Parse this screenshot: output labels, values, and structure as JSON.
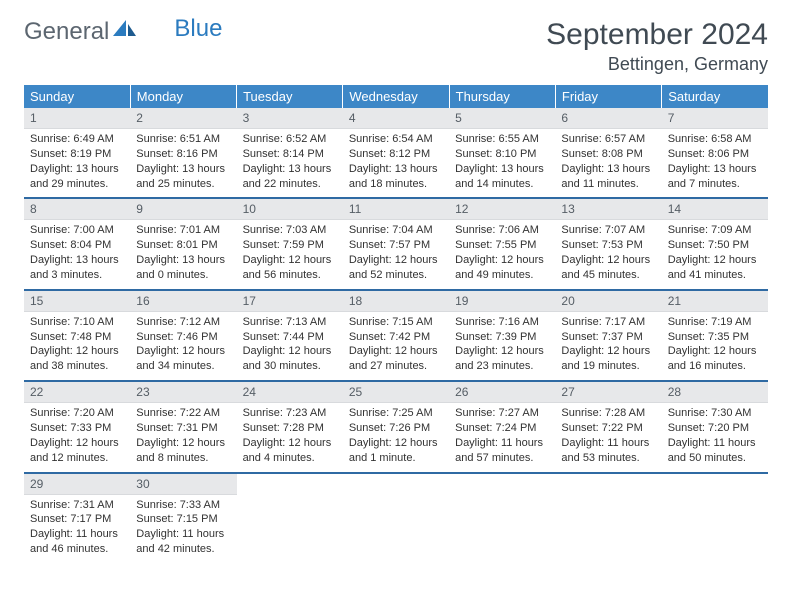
{
  "brand": {
    "general": "General",
    "blue": "Blue"
  },
  "title": "September 2024",
  "location": "Bettingen, Germany",
  "day_headers": [
    "Sunday",
    "Monday",
    "Tuesday",
    "Wednesday",
    "Thursday",
    "Friday",
    "Saturday"
  ],
  "colors": {
    "header_bg": "#3d87c7",
    "header_text": "#ffffff",
    "daynum_bg": "#e7e8ea",
    "daynum_text": "#555d65",
    "week_border": "#2f6aa3",
    "logo_gray": "#5c6670",
    "logo_blue": "#2b7bbf"
  },
  "weeks": [
    [
      {
        "n": "1",
        "sr": "6:49 AM",
        "ss": "8:19 PM",
        "dl": "13 hours and 29 minutes."
      },
      {
        "n": "2",
        "sr": "6:51 AM",
        "ss": "8:16 PM",
        "dl": "13 hours and 25 minutes."
      },
      {
        "n": "3",
        "sr": "6:52 AM",
        "ss": "8:14 PM",
        "dl": "13 hours and 22 minutes."
      },
      {
        "n": "4",
        "sr": "6:54 AM",
        "ss": "8:12 PM",
        "dl": "13 hours and 18 minutes."
      },
      {
        "n": "5",
        "sr": "6:55 AM",
        "ss": "8:10 PM",
        "dl": "13 hours and 14 minutes."
      },
      {
        "n": "6",
        "sr": "6:57 AM",
        "ss": "8:08 PM",
        "dl": "13 hours and 11 minutes."
      },
      {
        "n": "7",
        "sr": "6:58 AM",
        "ss": "8:06 PM",
        "dl": "13 hours and 7 minutes."
      }
    ],
    [
      {
        "n": "8",
        "sr": "7:00 AM",
        "ss": "8:04 PM",
        "dl": "13 hours and 3 minutes."
      },
      {
        "n": "9",
        "sr": "7:01 AM",
        "ss": "8:01 PM",
        "dl": "13 hours and 0 minutes."
      },
      {
        "n": "10",
        "sr": "7:03 AM",
        "ss": "7:59 PM",
        "dl": "12 hours and 56 minutes."
      },
      {
        "n": "11",
        "sr": "7:04 AM",
        "ss": "7:57 PM",
        "dl": "12 hours and 52 minutes."
      },
      {
        "n": "12",
        "sr": "7:06 AM",
        "ss": "7:55 PM",
        "dl": "12 hours and 49 minutes."
      },
      {
        "n": "13",
        "sr": "7:07 AM",
        "ss": "7:53 PM",
        "dl": "12 hours and 45 minutes."
      },
      {
        "n": "14",
        "sr": "7:09 AM",
        "ss": "7:50 PM",
        "dl": "12 hours and 41 minutes."
      }
    ],
    [
      {
        "n": "15",
        "sr": "7:10 AM",
        "ss": "7:48 PM",
        "dl": "12 hours and 38 minutes."
      },
      {
        "n": "16",
        "sr": "7:12 AM",
        "ss": "7:46 PM",
        "dl": "12 hours and 34 minutes."
      },
      {
        "n": "17",
        "sr": "7:13 AM",
        "ss": "7:44 PM",
        "dl": "12 hours and 30 minutes."
      },
      {
        "n": "18",
        "sr": "7:15 AM",
        "ss": "7:42 PM",
        "dl": "12 hours and 27 minutes."
      },
      {
        "n": "19",
        "sr": "7:16 AM",
        "ss": "7:39 PM",
        "dl": "12 hours and 23 minutes."
      },
      {
        "n": "20",
        "sr": "7:17 AM",
        "ss": "7:37 PM",
        "dl": "12 hours and 19 minutes."
      },
      {
        "n": "21",
        "sr": "7:19 AM",
        "ss": "7:35 PM",
        "dl": "12 hours and 16 minutes."
      }
    ],
    [
      {
        "n": "22",
        "sr": "7:20 AM",
        "ss": "7:33 PM",
        "dl": "12 hours and 12 minutes."
      },
      {
        "n": "23",
        "sr": "7:22 AM",
        "ss": "7:31 PM",
        "dl": "12 hours and 8 minutes."
      },
      {
        "n": "24",
        "sr": "7:23 AM",
        "ss": "7:28 PM",
        "dl": "12 hours and 4 minutes."
      },
      {
        "n": "25",
        "sr": "7:25 AM",
        "ss": "7:26 PM",
        "dl": "12 hours and 1 minute."
      },
      {
        "n": "26",
        "sr": "7:27 AM",
        "ss": "7:24 PM",
        "dl": "11 hours and 57 minutes."
      },
      {
        "n": "27",
        "sr": "7:28 AM",
        "ss": "7:22 PM",
        "dl": "11 hours and 53 minutes."
      },
      {
        "n": "28",
        "sr": "7:30 AM",
        "ss": "7:20 PM",
        "dl": "11 hours and 50 minutes."
      }
    ],
    [
      {
        "n": "29",
        "sr": "7:31 AM",
        "ss": "7:17 PM",
        "dl": "11 hours and 46 minutes."
      },
      {
        "n": "30",
        "sr": "7:33 AM",
        "ss": "7:15 PM",
        "dl": "11 hours and 42 minutes."
      },
      null,
      null,
      null,
      null,
      null
    ]
  ],
  "labels": {
    "sunrise": "Sunrise: ",
    "sunset": "Sunset: ",
    "daylight": "Daylight: "
  }
}
